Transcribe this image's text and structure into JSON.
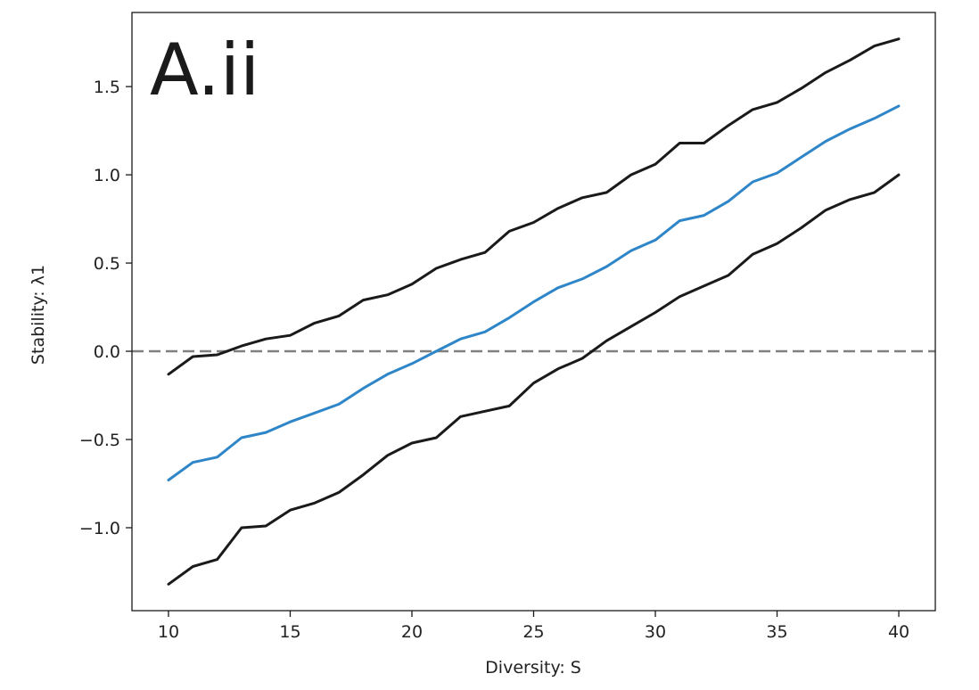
{
  "chart_data": {
    "type": "line",
    "panel_label": "A.ii",
    "title": "",
    "xlabel": "Diversity: S",
    "ylabel": "Stability: λ1",
    "xlim": [
      8.5,
      41.5
    ],
    "ylim": [
      -1.47,
      1.92
    ],
    "xticks": [
      10,
      15,
      20,
      25,
      30,
      35,
      40
    ],
    "xtick_labels": [
      "10",
      "15",
      "20",
      "25",
      "30",
      "35",
      "40"
    ],
    "yticks": [
      -1.0,
      -0.5,
      0.0,
      0.5,
      1.0,
      1.5
    ],
    "ytick_labels": [
      "−1.0",
      "−0.5",
      "0.0",
      "0.5",
      "1.0",
      "1.5"
    ],
    "grid": false,
    "reference_line": {
      "y": 0.0,
      "style": "dashed",
      "color": "#808080"
    },
    "x": [
      10,
      11,
      12,
      13,
      14,
      15,
      16,
      17,
      18,
      19,
      20,
      21,
      22,
      23,
      24,
      25,
      26,
      27,
      28,
      29,
      30,
      31,
      32,
      33,
      34,
      35,
      36,
      37,
      38,
      39,
      40
    ],
    "series": [
      {
        "color": "#1a1a1a",
        "values": [
          -0.13,
          -0.03,
          -0.02,
          0.03,
          0.07,
          0.09,
          0.16,
          0.2,
          0.29,
          0.32,
          0.38,
          0.47,
          0.52,
          0.56,
          0.68,
          0.73,
          0.81,
          0.87,
          0.9,
          1.0,
          1.06,
          1.18,
          1.18,
          1.28,
          1.37,
          1.41,
          1.49,
          1.58,
          1.65,
          1.73,
          1.77
        ]
      },
      {
        "color": "#2e86c8",
        "values": [
          -0.73,
          -0.63,
          -0.6,
          -0.49,
          -0.46,
          -0.4,
          -0.35,
          -0.3,
          -0.21,
          -0.13,
          -0.07,
          0.0,
          0.07,
          0.11,
          0.19,
          0.28,
          0.36,
          0.41,
          0.48,
          0.57,
          0.63,
          0.74,
          0.77,
          0.85,
          0.96,
          1.01,
          1.1,
          1.19,
          1.26,
          1.32,
          1.39
        ]
      },
      {
        "color": "#1a1a1a",
        "values": [
          -1.32,
          -1.22,
          -1.18,
          -1.0,
          -0.99,
          -0.9,
          -0.86,
          -0.8,
          -0.7,
          -0.59,
          -0.52,
          -0.49,
          -0.37,
          -0.34,
          -0.31,
          -0.18,
          -0.1,
          -0.04,
          0.06,
          0.14,
          0.22,
          0.31,
          0.37,
          0.43,
          0.55,
          0.61,
          0.7,
          0.8,
          0.86,
          0.9,
          1.0
        ]
      }
    ]
  }
}
